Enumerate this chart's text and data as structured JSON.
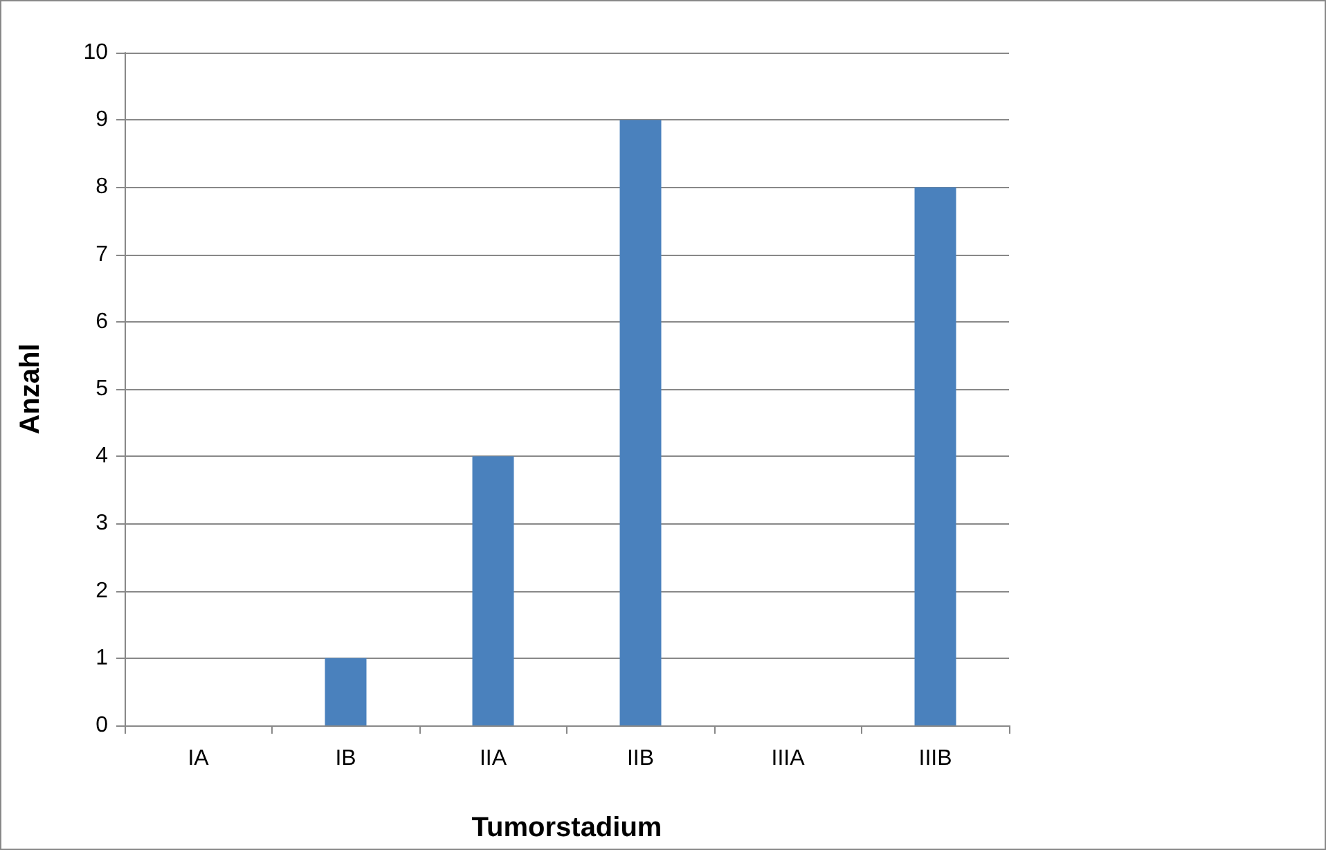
{
  "chart_data": {
    "type": "bar",
    "xlabel": "Tumorstadium",
    "ylabel": "Anzahl",
    "categories": [
      "IA",
      "IB",
      "IIA",
      "IIB",
      "IIIA",
      "IIIB"
    ],
    "values": [
      0,
      1,
      4,
      9,
      0,
      8
    ],
    "color": "#4a81bd",
    "ylim": [
      0,
      10
    ],
    "yticks": [
      0,
      1,
      2,
      3,
      4,
      5,
      6,
      7,
      8,
      9,
      10
    ],
    "grid": "y"
  }
}
